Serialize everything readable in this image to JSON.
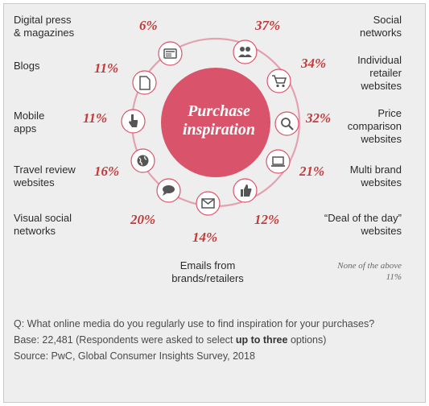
{
  "diagram": {
    "center_text": "Purchase\ninspiration",
    "colors": {
      "accent": "#c23a3a",
      "circle": "#d9546a",
      "ring": "#e3a2b0",
      "background": "#efeeee"
    },
    "items": [
      {
        "id": "digital-press",
        "label": "Digital press\n& magazines",
        "value": "6%",
        "icon": "newspaper-icon"
      },
      {
        "id": "social-networks",
        "label": "Social\nnetworks",
        "value": "37%",
        "icon": "people-icon"
      },
      {
        "id": "blogs",
        "label": "Blogs",
        "value": "11%",
        "icon": "document-icon"
      },
      {
        "id": "individual-retailer",
        "label": "Individual\nretailer\nwebsites",
        "value": "34%",
        "icon": "shopping-cart-icon"
      },
      {
        "id": "mobile-apps",
        "label": "Mobile\napps",
        "value": "11%",
        "icon": "hand-pointer-icon"
      },
      {
        "id": "price-comparison",
        "label": "Price\ncomparison\nwebsites",
        "value": "32%",
        "icon": "magnifier-icon"
      },
      {
        "id": "travel-review",
        "label": "Travel review\nwebsites",
        "value": "16%",
        "icon": "globe-icon"
      },
      {
        "id": "multi-brand",
        "label": "Multi brand\nwebsites",
        "value": "21%",
        "icon": "laptop-icon"
      },
      {
        "id": "visual-social",
        "label": "Visual social\nnetworks",
        "value": "20%",
        "icon": "speech-bubble-icon"
      },
      {
        "id": "deal-of-day",
        "label": "“Deal of the day”\nwebsites",
        "value": "12%",
        "icon": "thumbs-up-icon"
      },
      {
        "id": "emails",
        "label": "Emails from\nbrands/retailers",
        "value": "14%",
        "icon": "envelope-icon"
      }
    ],
    "none_of_above": {
      "label": "None of the above",
      "value": "11%"
    }
  },
  "footer": {
    "question": "Q: What online media do you regularly use to find inspiration for your purchases?",
    "base_prefix": "Base: 22,481 (Respondents were asked to select ",
    "base_bold": "up to three",
    "base_suffix": " options)",
    "source": "Source: PwC, Global Consumer Insights Survey, 2018"
  }
}
